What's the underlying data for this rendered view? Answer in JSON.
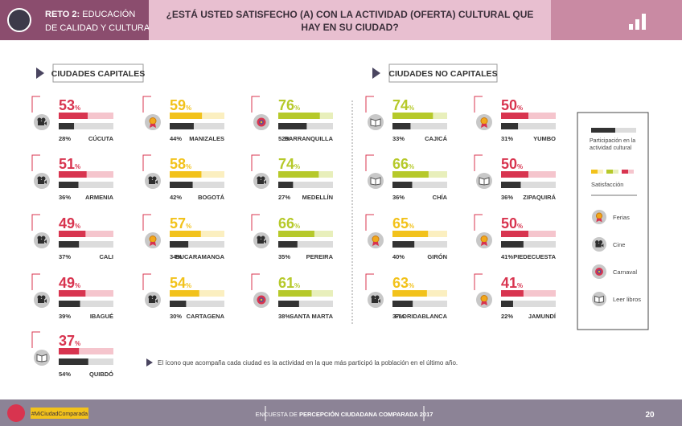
{
  "header": {
    "reto_label": "RETO 2:",
    "reto_lines": [
      "EDUCACIÓN",
      "DE CALIDAD Y CULTURA"
    ],
    "title_lines": [
      "¿ESTÁ USTED SATISFECHO (A) CON LA ACTIVIDAD (OFERTA) CULTURAL QUE",
      "HAY EN SU CIUDAD?"
    ]
  },
  "units": {
    "percent": "%"
  },
  "palette": {
    "red": {
      "main": "#d8344f",
      "light": "#f5c5cd"
    },
    "yellow": {
      "main": "#f2c21b",
      "light": "#fbefc0"
    },
    "green": {
      "main": "#b6c92a",
      "light": "#e8efbb"
    },
    "participation": {
      "main": "#333333",
      "light": "#dcdcdc"
    }
  },
  "groups": [
    {
      "title": "CIUDADES CAPITALES",
      "columns": [
        [
          {
            "name": "CÚCUTA",
            "satisfaction": 53,
            "participation": 28,
            "participation_label": "28%",
            "activity": "Cine",
            "scale": "red"
          },
          {
            "name": "ARMENIA",
            "satisfaction": 51,
            "participation": 36,
            "participation_label": "36%",
            "activity": "Cine",
            "scale": "red"
          },
          {
            "name": "CALI",
            "satisfaction": 49,
            "participation": 37,
            "participation_label": "37%",
            "activity": "Cine",
            "scale": "red"
          },
          {
            "name": "IBAGUÉ",
            "satisfaction": 49,
            "participation": 39,
            "participation_label": "39%",
            "activity": "Cine",
            "scale": "red"
          },
          {
            "name": "QUIBDÓ",
            "satisfaction": 37,
            "participation": 54,
            "participation_label": "54%",
            "activity": "Leer libros",
            "scale": "red"
          }
        ],
        [
          {
            "name": "MANIZALES",
            "satisfaction": 59,
            "participation": 44,
            "participation_label": "44%",
            "activity": "Ferias",
            "scale": "yellow"
          },
          {
            "name": "BOGOTÁ",
            "satisfaction": 58,
            "participation": 42,
            "participation_label": "42%",
            "activity": "Cine",
            "scale": "yellow"
          },
          {
            "name": "BUCARAMANGA",
            "satisfaction": 57,
            "participation": 34,
            "participation_label": "34%",
            "activity": "Ferias",
            "scale": "yellow"
          },
          {
            "name": "CARTAGENA",
            "satisfaction": 54,
            "participation": 30,
            "participation_label": "30%",
            "activity": "Cine",
            "scale": "yellow"
          }
        ],
        [
          {
            "name": "BARRANQUILLA",
            "satisfaction": 76,
            "participation": 52,
            "participation_label": "52%",
            "activity": "Carnaval",
            "scale": "green"
          },
          {
            "name": "MEDELLÍN",
            "satisfaction": 74,
            "participation": 27,
            "participation_label": "27%",
            "activity": "Cine",
            "scale": "green"
          },
          {
            "name": "PEREIRA",
            "satisfaction": 66,
            "participation": 35,
            "participation_label": "35%",
            "activity": "Cine",
            "scale": "green"
          },
          {
            "name": "SANTA MARTA",
            "satisfaction": 61,
            "participation": 38,
            "participation_label": "38%",
            "activity": "Carnaval",
            "scale": "green"
          }
        ]
      ]
    },
    {
      "title": "CIUDADES NO CAPITALES",
      "columns": [
        [
          {
            "name": "CAJICÁ",
            "satisfaction": 74,
            "participation": 33,
            "participation_label": "33%",
            "activity": "Leer libros",
            "scale": "green"
          },
          {
            "name": "CHÍA",
            "satisfaction": 66,
            "participation": 36,
            "participation_label": "36%",
            "activity": "Leer libros",
            "scale": "green"
          },
          {
            "name": "GIRÓN",
            "satisfaction": 65,
            "participation": 40,
            "participation_label": "40%",
            "activity": "Ferias",
            "scale": "yellow"
          },
          {
            "name": "FLORIDABLANCA",
            "satisfaction": 63,
            "participation": 37,
            "participation_label": "37%",
            "activity": "Cine",
            "scale": "yellow"
          }
        ],
        [
          {
            "name": "YUMBO",
            "satisfaction": 50,
            "participation": 31,
            "participation_label": "31%",
            "activity": "Ferias",
            "scale": "red"
          },
          {
            "name": "ZIPAQUIRÁ",
            "satisfaction": 50,
            "participation": 36,
            "participation_label": "36%",
            "activity": "Leer libros",
            "scale": "red"
          },
          {
            "name": "PIEDECUESTA",
            "satisfaction": 50,
            "participation": 41,
            "participation_label": "41%",
            "activity": "Ferias",
            "scale": "red"
          },
          {
            "name": "JAMUNDÍ",
            "satisfaction": 41,
            "participation": 22,
            "participation_label": "22%",
            "activity": "Ferias",
            "scale": "red"
          }
        ]
      ]
    }
  ],
  "legend": {
    "participation": "Participación en la actividad cultural",
    "satisfaction": "Satisfacción",
    "activities": [
      "Ferias",
      "Cine",
      "Carnaval",
      "Leer libros"
    ]
  },
  "footnote": "El ícono que acompaña cada ciudad es la actividad en la que más participó la población en el último año.",
  "footer": {
    "hashtag": "#MiCiudadComparada",
    "survey_prefix": "ENCUESTA DE ",
    "survey_bold": "PERCEPCIÓN CIUDADANA COMPARADA 2017",
    "page": "20"
  }
}
